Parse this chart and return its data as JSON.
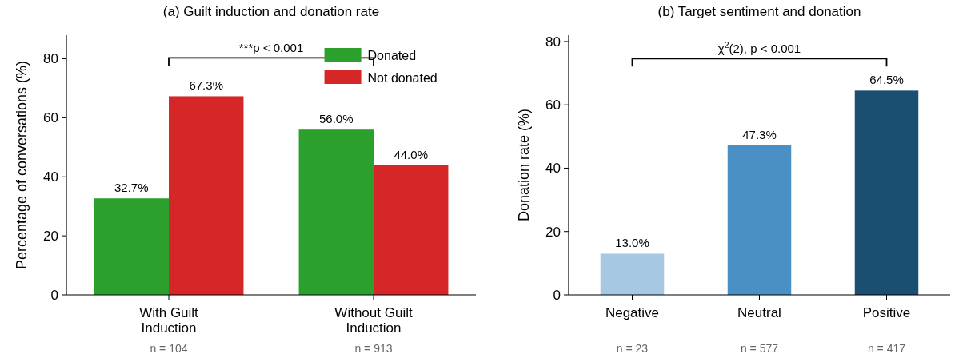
{
  "chart_data": [
    {
      "type": "bar",
      "title": "(a) Guilt induction and donation rate",
      "ylabel": "Percentage of conversations (%)",
      "categories": [
        "With Guilt Induction",
        "Without Guilt Induction"
      ],
      "series": [
        {
          "name": "Donated",
          "color": "#2ca02c",
          "values": [
            32.7,
            56.0
          ],
          "value_labels": [
            "32.7%",
            "56.0%"
          ]
        },
        {
          "name": "Not donated",
          "color": "#d62728",
          "values": [
            67.3,
            44.0
          ],
          "value_labels": [
            "67.3%",
            "44.0%"
          ]
        }
      ],
      "ylim": [
        0,
        88
      ],
      "yticks": [
        0,
        20,
        40,
        60,
        80
      ],
      "grid": false,
      "legend": "top right",
      "annotations": [
        "***p < 0.001",
        "n = 104",
        "n = 913"
      ]
    },
    {
      "type": "bar",
      "title": "(b) Target sentiment and donation",
      "ylabel": "Donation rate (%)",
      "categories": [
        "Negative",
        "Neutral",
        "Positive"
      ],
      "values": [
        13.0,
        47.3,
        64.5
      ],
      "colors": [
        "#a6c8e2",
        "#4a90c4",
        "#1b4f72"
      ],
      "value_labels": [
        "13.0%",
        "47.3%",
        "64.5%"
      ],
      "ylim": [
        0,
        82
      ],
      "yticks": [
        0,
        20,
        40,
        60,
        80
      ],
      "grid": false,
      "annotations": [
        "χ$^{2}$(2), p < 0.001",
        "n = 23",
        "n = 577",
        "n = 417"
      ]
    }
  ]
}
